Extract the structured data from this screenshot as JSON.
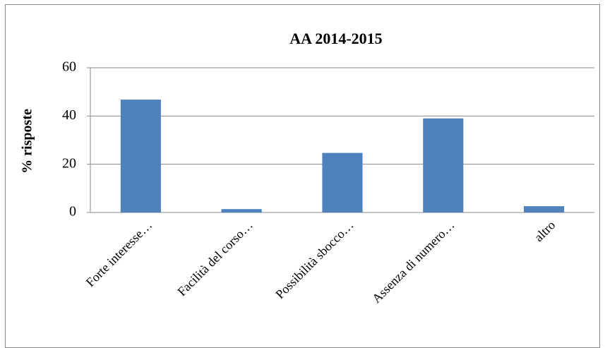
{
  "chart_data": {
    "type": "bar",
    "title": "AA 2014-2015",
    "y_label": "% risposte",
    "categories": [
      "Forte interesse…",
      "Facilità del corso…",
      "Possibilità sbocco…",
      "Assenza di numero…",
      "altro"
    ],
    "values": [
      46.8,
      1.4,
      24.7,
      39,
      2.6
    ],
    "color": "#4f81bd",
    "ylim": [
      0,
      60
    ],
    "yticks": [
      0,
      20,
      40,
      60
    ],
    "grid": true
  }
}
